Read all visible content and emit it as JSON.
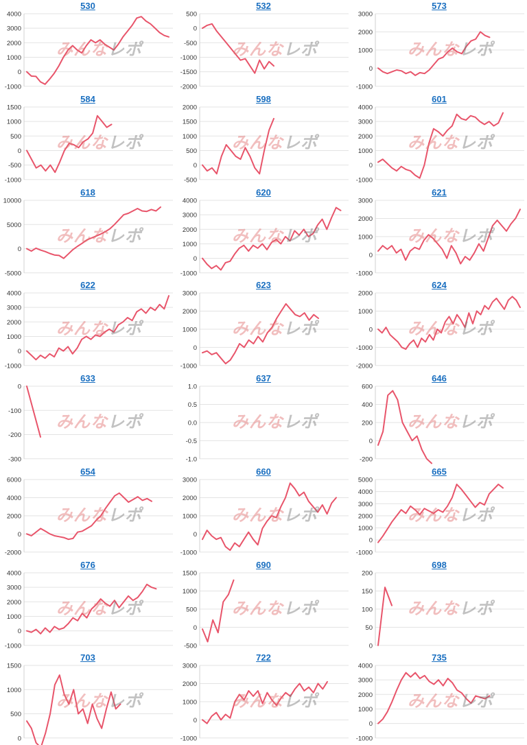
{
  "colors": {
    "line": "#e8546a",
    "grid": "#e3e3e3",
    "title": "#1a6fc0",
    "tick": "#333333"
  },
  "watermark": {
    "part_a": "みんな",
    "part_b": "レポ"
  },
  "chart_data": [
    {
      "type": "line",
      "title": "530",
      "ylim": [
        -1000,
        4000
      ],
      "yticks": [
        -1000,
        0,
        1000,
        2000,
        3000,
        4000
      ],
      "grid": true,
      "values": [
        0,
        -300,
        -320,
        -700,
        -860,
        -500,
        -100,
        400,
        1000,
        1500,
        1800,
        1500,
        1300,
        1800,
        2200,
        2000,
        2200,
        1900,
        1700,
        1500,
        1900,
        2400,
        2800,
        3200,
        3700,
        3800,
        3500,
        3300,
        3000,
        2700,
        2500,
        2400
      ]
    },
    {
      "type": "line",
      "title": "532",
      "ylim": [
        -2000,
        500
      ],
      "yticks": [
        -2000,
        -1500,
        -1000,
        -500,
        0,
        500
      ],
      "grid": true,
      "values": [
        0,
        100,
        150,
        -100,
        -300,
        -500,
        -700,
        -900,
        -1100,
        -1050,
        -1300,
        -1550,
        -1100,
        -1400,
        -1150,
        -1300
      ]
    },
    {
      "type": "line",
      "title": "573",
      "ylim": [
        -1000,
        3000
      ],
      "yticks": [
        -1000,
        0,
        1000,
        2000,
        3000
      ],
      "grid": true,
      "values": [
        0,
        -200,
        -300,
        -200,
        -100,
        -150,
        -300,
        -200,
        -400,
        -250,
        -300,
        -100,
        200,
        500,
        600,
        900,
        1100,
        900,
        800,
        1200,
        1500,
        1600,
        2000,
        1800,
        1700
      ]
    },
    {
      "type": "line",
      "title": "584",
      "ylim": [
        -1000,
        1500
      ],
      "yticks": [
        -1000,
        -500,
        0,
        500,
        1000,
        1500
      ],
      "grid": true,
      "values": [
        0,
        -300,
        -600,
        -500,
        -700,
        -500,
        -750,
        -400,
        0,
        250,
        200,
        100,
        300,
        400,
        600,
        1200,
        1000,
        800,
        900
      ]
    },
    {
      "type": "line",
      "title": "598",
      "ylim": [
        -500,
        2000
      ],
      "yticks": [
        -500,
        0,
        500,
        1000,
        1500,
        2000
      ],
      "grid": true,
      "values": [
        0,
        -200,
        -100,
        -300,
        300,
        700,
        500,
        300,
        200,
        600,
        300,
        -100,
        -300,
        500,
        1200,
        1600
      ]
    },
    {
      "type": "line",
      "title": "601",
      "ylim": [
        -1000,
        4000
      ],
      "yticks": [
        -1000,
        0,
        1000,
        2000,
        3000,
        4000
      ],
      "grid": true,
      "values": [
        200,
        400,
        100,
        -200,
        -400,
        -100,
        -300,
        -400,
        -700,
        -900,
        0,
        1500,
        2500,
        2300,
        2000,
        2400,
        2700,
        3500,
        3200,
        3100,
        3400,
        3300,
        3000,
        2800,
        3000,
        2700,
        2900,
        3600
      ]
    },
    {
      "type": "line",
      "title": "618",
      "ylim": [
        -5000,
        10000
      ],
      "yticks": [
        -5000,
        0,
        5000,
        10000
      ],
      "grid": true,
      "values": [
        0,
        -500,
        100,
        -300,
        -600,
        -1000,
        -1300,
        -1400,
        -2000,
        -1100,
        -200,
        500,
        1100,
        1800,
        2200,
        2600,
        3000,
        3500,
        4100,
        5000,
        6000,
        7000,
        7300,
        7800,
        8300,
        7800,
        7700,
        8100,
        7800,
        8600
      ]
    },
    {
      "type": "line",
      "title": "620",
      "ylim": [
        -1000,
        4000
      ],
      "yticks": [
        -1000,
        0,
        1000,
        2000,
        3000,
        4000
      ],
      "grid": true,
      "values": [
        0,
        -400,
        -700,
        -500,
        -800,
        -300,
        -200,
        300,
        700,
        900,
        500,
        900,
        700,
        1000,
        600,
        1100,
        1300,
        1000,
        1500,
        1200,
        1900,
        1600,
        2000,
        1500,
        1700,
        2300,
        2700,
        2000,
        2800,
        3500,
        3300
      ]
    },
    {
      "type": "line",
      "title": "621",
      "ylim": [
        -1000,
        3000
      ],
      "yticks": [
        -1000,
        0,
        1000,
        2000,
        3000
      ],
      "grid": true,
      "values": [
        200,
        500,
        300,
        500,
        100,
        300,
        -300,
        200,
        400,
        300,
        800,
        1100,
        900,
        600,
        300,
        -200,
        500,
        100,
        -500,
        -100,
        -300,
        100,
        600,
        200,
        900,
        1600,
        1900,
        1600,
        1300,
        1700,
        2000,
        2500
      ]
    },
    {
      "type": "line",
      "title": "622",
      "ylim": [
        -1000,
        4000
      ],
      "yticks": [
        -1000,
        0,
        1000,
        2000,
        3000,
        4000
      ],
      "grid": true,
      "values": [
        0,
        -300,
        -600,
        -300,
        -500,
        -200,
        -400,
        200,
        0,
        300,
        -200,
        200,
        800,
        1000,
        800,
        1100,
        1000,
        1300,
        1500,
        1300,
        1800,
        2000,
        2300,
        2100,
        2700,
        2900,
        2600,
        3000,
        2800,
        3200,
        2900,
        3800
      ]
    },
    {
      "type": "line",
      "title": "623",
      "ylim": [
        -1000,
        3000
      ],
      "yticks": [
        -1000,
        0,
        1000,
        2000,
        3000
      ],
      "grid": true,
      "values": [
        -300,
        -200,
        -400,
        -300,
        -600,
        -900,
        -700,
        -300,
        200,
        0,
        400,
        200,
        600,
        300,
        800,
        1100,
        1600,
        2000,
        2400,
        2100,
        1800,
        1700,
        1900,
        1500,
        1800,
        1600
      ]
    },
    {
      "type": "line",
      "title": "624",
      "ylim": [
        -2000,
        2000
      ],
      "yticks": [
        -2000,
        -1000,
        0,
        1000,
        2000
      ],
      "grid": true,
      "values": [
        0,
        -200,
        100,
        -300,
        -500,
        -700,
        -1000,
        -1100,
        -800,
        -600,
        -1000,
        -500,
        -700,
        -300,
        -600,
        0,
        -200,
        400,
        700,
        300,
        800,
        500,
        100,
        900,
        300,
        1000,
        800,
        1300,
        1100,
        1500,
        1700,
        1400,
        1100,
        1600,
        1800,
        1600,
        1200
      ]
    },
    {
      "type": "line",
      "title": "633",
      "ylim": [
        -300,
        0
      ],
      "yticks": [
        -300,
        -200,
        -100,
        0
      ],
      "grid": true,
      "values": [
        0,
        -210
      ]
    },
    {
      "type": "line",
      "title": "637",
      "ylim": [
        -1.0,
        1.0
      ],
      "yticks": [
        -1.0,
        -0.5,
        0.0,
        0.5,
        1.0
      ],
      "grid": true,
      "values": []
    },
    {
      "type": "line",
      "title": "646",
      "ylim": [
        -200,
        600
      ],
      "yticks": [
        -200,
        0,
        200,
        400,
        600
      ],
      "grid": true,
      "values": [
        -50,
        100,
        500,
        550,
        450,
        200,
        100,
        0,
        50,
        -100,
        -200,
        -250
      ]
    },
    {
      "type": "line",
      "title": "654",
      "ylim": [
        -2000,
        6000
      ],
      "yticks": [
        -2000,
        0,
        2000,
        4000,
        6000
      ],
      "grid": true,
      "values": [
        0,
        -200,
        200,
        600,
        300,
        0,
        -200,
        -300,
        -400,
        -600,
        -500,
        200,
        300,
        600,
        900,
        1500,
        2000,
        2800,
        3500,
        4200,
        4500,
        4000,
        3500,
        3800,
        4100,
        3700,
        3900,
        3600
      ]
    },
    {
      "type": "line",
      "title": "660",
      "ylim": [
        -1000,
        3000
      ],
      "yticks": [
        -1000,
        0,
        1000,
        2000,
        3000
      ],
      "grid": true,
      "values": [
        -300,
        200,
        -100,
        -300,
        -200,
        -700,
        -900,
        -500,
        -700,
        -300,
        100,
        -300,
        -600,
        300,
        700,
        1000,
        900,
        1500,
        2000,
        2800,
        2500,
        2100,
        2300,
        1800,
        1500,
        1200,
        1600,
        1100,
        1700,
        2000
      ]
    },
    {
      "type": "line",
      "title": "665",
      "ylim": [
        -1000,
        5000
      ],
      "yticks": [
        -1000,
        0,
        1000,
        2000,
        3000,
        4000,
        5000
      ],
      "grid": true,
      "values": [
        -200,
        300,
        900,
        1500,
        2000,
        2500,
        2200,
        2800,
        2500,
        2100,
        2600,
        2400,
        2200,
        2500,
        2300,
        2800,
        3500,
        4600,
        4200,
        3700,
        3200,
        2700,
        3100,
        2900,
        3800,
        4200,
        4600,
        4300
      ]
    },
    {
      "type": "line",
      "title": "676",
      "ylim": [
        -1000,
        4000
      ],
      "yticks": [
        -1000,
        0,
        1000,
        2000,
        3000,
        4000
      ],
      "grid": true,
      "values": [
        0,
        -100,
        100,
        -200,
        200,
        -100,
        300,
        100,
        200,
        500,
        900,
        700,
        1200,
        900,
        1500,
        1800,
        2200,
        1900,
        1700,
        2100,
        1600,
        2000,
        2400,
        2100,
        2300,
        2700,
        3200,
        3000,
        2900
      ]
    },
    {
      "type": "line",
      "title": "690",
      "ylim": [
        -500,
        1500
      ],
      "yticks": [
        -500,
        0,
        500,
        1000,
        1500
      ],
      "grid": true,
      "values": [
        -50,
        -400,
        200,
        -150,
        700,
        900,
        1300
      ]
    },
    {
      "type": "line",
      "title": "698",
      "ylim": [
        0,
        200
      ],
      "yticks": [
        0,
        50,
        100,
        150,
        200
      ],
      "grid": true,
      "values": [
        0,
        160,
        110
      ]
    },
    {
      "type": "line",
      "title": "703",
      "ylim": [
        0,
        1500
      ],
      "yticks": [
        0,
        500,
        1000,
        1500
      ],
      "grid": true,
      "values": [
        350,
        200,
        -100,
        -200,
        100,
        500,
        1100,
        1300,
        900,
        700,
        1000,
        500,
        600,
        300,
        700,
        400,
        200,
        600,
        950,
        600,
        700
      ]
    },
    {
      "type": "line",
      "title": "722",
      "ylim": [
        -1000,
        3000
      ],
      "yticks": [
        -1000,
        0,
        1000,
        2000,
        3000
      ],
      "grid": true,
      "values": [
        0,
        -200,
        200,
        400,
        0,
        300,
        100,
        1000,
        1400,
        1100,
        1600,
        1300,
        1600,
        900,
        1500,
        1100,
        800,
        1200,
        1500,
        1300,
        1700,
        2000,
        1600,
        1800,
        1500,
        2000,
        1700,
        2100
      ]
    },
    {
      "type": "line",
      "title": "735",
      "ylim": [
        -1000,
        4000
      ],
      "yticks": [
        -1000,
        0,
        1000,
        2000,
        3000,
        4000
      ],
      "grid": true,
      "values": [
        0,
        300,
        800,
        1500,
        2300,
        3000,
        3500,
        3200,
        3500,
        3100,
        3300,
        2900,
        2700,
        3000,
        2600,
        3100,
        2800,
        2300,
        2100,
        1700,
        1400,
        1900,
        1800,
        1700,
        1900
      ]
    }
  ]
}
